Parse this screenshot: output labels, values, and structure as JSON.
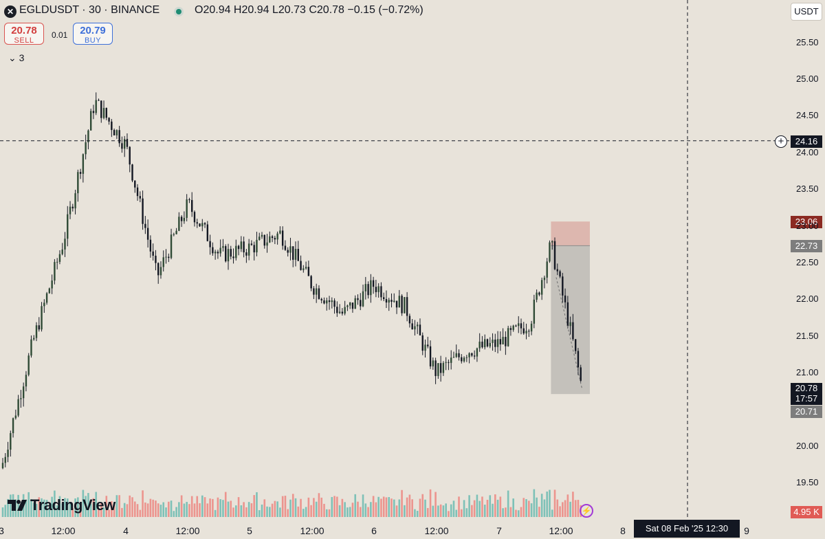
{
  "header": {
    "symbol_icon": "egld-logo-icon",
    "symbol": "EGLDUSDT · 30 · BINANCE",
    "ohlc": "O20.94  H20.94  L20.73  C20.78  −0.15 (−0.72%)"
  },
  "trade": {
    "sell_price": "20.78",
    "sell_label": "SELL",
    "spread": "0.01",
    "buy_price": "20.79",
    "buy_label": "BUY"
  },
  "indicators_count": "3",
  "currency": "USDT",
  "brand": "TradingView",
  "crosshair_price": "24.16",
  "crosshair_time": "Sat 08 Feb '25   12:30",
  "price_labels": {
    "stop": "23.06",
    "entry": "22.73",
    "last": "20.78",
    "countdown": "17:57",
    "target": "20.71",
    "volume": "4.95 K"
  },
  "colors": {
    "up": "#26a69a",
    "down": "#ef5350",
    "candle": "#131722",
    "background": "#e8e3da",
    "stop_zone": "#d9a8a0",
    "target_zone": "#b8b5b0"
  },
  "chart_data": {
    "type": "candlestick",
    "symbol": "EGLDUSDT",
    "interval": "30",
    "exchange": "BINANCE",
    "y_ticks": [
      "25.50",
      "25.00",
      "24.50",
      "24.00",
      "23.50",
      "23.00",
      "22.50",
      "22.00",
      "21.50",
      "21.00",
      "20.00",
      "19.50"
    ],
    "x_ticks": [
      "3",
      "12:00",
      "4",
      "12:00",
      "5",
      "12:00",
      "6",
      "12:00",
      "7",
      "12:00",
      "8",
      "9"
    ],
    "ylim": [
      19.2,
      25.8
    ],
    "price_path": [
      [
        "3 00:00",
        19.7
      ],
      [
        "3 06:00",
        21.4
      ],
      [
        "3 12:00",
        22.8
      ],
      [
        "3 18:00",
        24.7
      ],
      [
        "4 00:00",
        24.1
      ],
      [
        "4 06:00",
        22.3
      ],
      [
        "4 12:00",
        23.3
      ],
      [
        "4 18:00",
        22.6
      ],
      [
        "5 00:00",
        22.7
      ],
      [
        "5 06:00",
        22.9
      ],
      [
        "5 12:00",
        22.2
      ],
      [
        "5 18:00",
        21.8
      ],
      [
        "6 00:00",
        22.2
      ],
      [
        "6 06:00",
        21.9
      ],
      [
        "6 12:00",
        21.0
      ],
      [
        "6 18:00",
        21.3
      ],
      [
        "7 00:00",
        21.4
      ],
      [
        "7 06:00",
        21.7
      ],
      [
        "7 10:00",
        22.75
      ],
      [
        "7 14:00",
        21.5
      ],
      [
        "7 16:00",
        20.78
      ]
    ],
    "position": {
      "type": "short",
      "entry": 22.73,
      "stop": 23.06,
      "target": 20.71,
      "start": "7 10:00",
      "end": "7 17:30"
    },
    "last_price": 20.78,
    "volume_last": "4.95K",
    "crosshair": {
      "price": 24.16,
      "time": "Sat 08 Feb '25 12:30"
    }
  }
}
